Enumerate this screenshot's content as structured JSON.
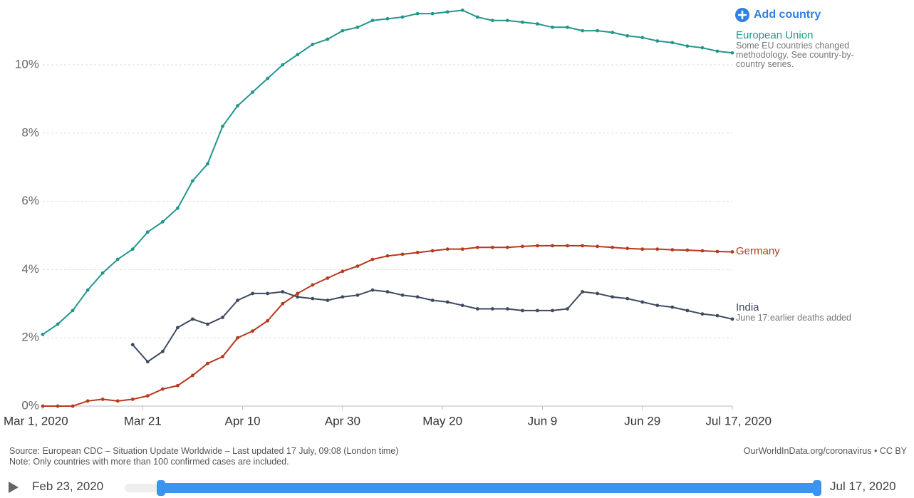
{
  "chart_data": {
    "type": "line",
    "add_country": "Add country",
    "x": [
      "2020-03-01",
      "2020-03-04",
      "2020-03-07",
      "2020-03-10",
      "2020-03-13",
      "2020-03-16",
      "2020-03-19",
      "2020-03-22",
      "2020-03-25",
      "2020-03-28",
      "2020-03-31",
      "2020-04-03",
      "2020-04-06",
      "2020-04-09",
      "2020-04-12",
      "2020-04-15",
      "2020-04-18",
      "2020-04-21",
      "2020-04-24",
      "2020-04-27",
      "2020-04-30",
      "2020-05-03",
      "2020-05-06",
      "2020-05-09",
      "2020-05-12",
      "2020-05-15",
      "2020-05-18",
      "2020-05-21",
      "2020-05-24",
      "2020-05-27",
      "2020-05-30",
      "2020-06-02",
      "2020-06-05",
      "2020-06-08",
      "2020-06-11",
      "2020-06-14",
      "2020-06-17",
      "2020-06-20",
      "2020-06-23",
      "2020-06-26",
      "2020-06-29",
      "2020-07-02",
      "2020-07-05",
      "2020-07-08",
      "2020-07-11",
      "2020-07-14",
      "2020-07-17"
    ],
    "series": [
      {
        "name": "European Union",
        "color": "#22968c",
        "annotation": "Some EU countries changed methodology. See country-by-country series.",
        "values": [
          2.1,
          2.4,
          2.8,
          3.4,
          3.9,
          4.3,
          4.6,
          5.1,
          5.4,
          5.8,
          6.6,
          7.1,
          8.2,
          8.8,
          9.2,
          9.6,
          10.0,
          10.3,
          10.6,
          10.75,
          11.0,
          11.1,
          11.3,
          11.35,
          11.4,
          11.5,
          11.5,
          11.55,
          11.6,
          11.4,
          11.3,
          11.3,
          11.25,
          11.2,
          11.1,
          11.1,
          11.0,
          11.0,
          10.95,
          10.85,
          10.8,
          10.7,
          10.65,
          10.55,
          10.5,
          10.4,
          10.35
        ]
      },
      {
        "name": "Germany",
        "color": "#b63a1c",
        "values": [
          0,
          0,
          0,
          0.15,
          0.2,
          0.15,
          0.2,
          0.3,
          0.5,
          0.6,
          0.9,
          1.25,
          1.45,
          2.0,
          2.2,
          2.5,
          3.0,
          3.3,
          3.55,
          3.75,
          3.95,
          4.1,
          4.3,
          4.4,
          4.45,
          4.5,
          4.55,
          4.6,
          4.6,
          4.65,
          4.65,
          4.65,
          4.68,
          4.7,
          4.7,
          4.7,
          4.7,
          4.68,
          4.65,
          4.62,
          4.6,
          4.6,
          4.58,
          4.57,
          4.55,
          4.53,
          4.52
        ]
      },
      {
        "name": "India",
        "color": "#3e4a61",
        "annotation": "June 17:earlier deaths added",
        "values": [
          null,
          null,
          null,
          null,
          null,
          null,
          1.8,
          1.3,
          1.6,
          2.3,
          2.55,
          2.4,
          2.6,
          3.1,
          3.3,
          3.3,
          3.35,
          3.2,
          3.15,
          3.1,
          3.2,
          3.25,
          3.4,
          3.35,
          3.25,
          3.2,
          3.1,
          3.05,
          2.95,
          2.85,
          2.85,
          2.85,
          2.8,
          2.8,
          2.8,
          2.85,
          3.35,
          3.3,
          3.2,
          3.15,
          3.05,
          2.95,
          2.9,
          2.8,
          2.7,
          2.65,
          2.55
        ]
      }
    ],
    "xlim": [
      "2020-03-01",
      "2020-07-17"
    ],
    "xticks": [
      {
        "value": "2020-03-01",
        "label": "Mar 1, 2020"
      },
      {
        "value": "2020-03-21",
        "label": "Mar 21"
      },
      {
        "value": "2020-04-10",
        "label": "Apr 10"
      },
      {
        "value": "2020-04-30",
        "label": "Apr 30"
      },
      {
        "value": "2020-05-20",
        "label": "May 20"
      },
      {
        "value": "2020-06-09",
        "label": "Jun 9"
      },
      {
        "value": "2020-06-29",
        "label": "Jun 29"
      },
      {
        "value": "2020-07-17",
        "label": "Jul 17, 2020"
      }
    ],
    "ylim": [
      0,
      11.7
    ],
    "yticks": [
      {
        "value": 0,
        "label": "0%"
      },
      {
        "value": 2,
        "label": "2%"
      },
      {
        "value": 4,
        "label": "4%"
      },
      {
        "value": 6,
        "label": "6%"
      },
      {
        "value": 8,
        "label": "8%"
      },
      {
        "value": 10,
        "label": "10%"
      }
    ],
    "grid": true,
    "source": "Source: European CDC – Situation Update Worldwide – Last updated 17 July, 09:08 (London time)",
    "note": "Note: Only countries with more than 100 confirmed cases are included.",
    "credit": "OurWorldInData.org/coronavirus • CC BY",
    "timeline": {
      "start": "Feb 23, 2020",
      "end": "Jul 17, 2020"
    }
  }
}
